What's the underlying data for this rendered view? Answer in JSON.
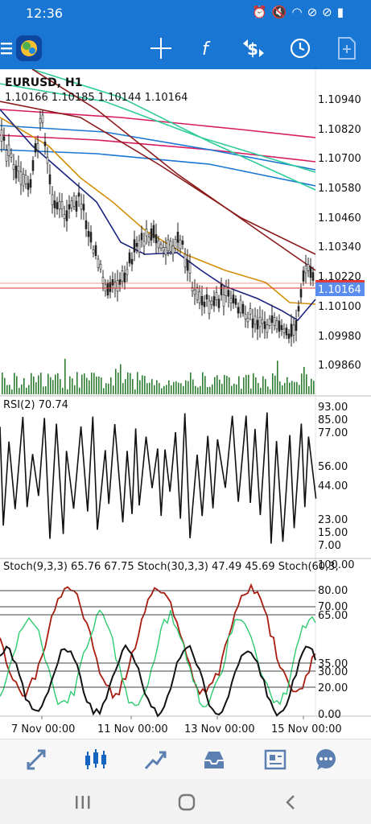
{
  "status_bar": {
    "time": "12:36",
    "icons": [
      "alarm-icon",
      "mute-icon",
      "wifi-icon",
      "blocked-icon",
      "blocked-icon",
      "battery-icon"
    ]
  },
  "toolbar": {
    "buttons": [
      "menu-icon",
      "app-logo",
      "crosshair-icon",
      "indicators-icon",
      "symbol-change-icon",
      "timeframe-icon",
      "add-object-icon"
    ]
  },
  "chart": {
    "symbol": "EURUSD, H1",
    "ohlc": "1.10166 1.10185 1.10144 1.10164",
    "price_labels": [
      "1.10940",
      "1.10820",
      "1.10700",
      "1.10580",
      "1.10460",
      "1.10340",
      "1.10220",
      "1.10100",
      "1.09980",
      "1.09860"
    ],
    "current_price": "1.10164",
    "rsi": {
      "label": "RSI(2) 70.74",
      "levels": [
        "93.00",
        "85.00",
        "77.00",
        "56.00",
        "44.00",
        "23.00",
        "15.00",
        "7.00"
      ]
    },
    "stoch": {
      "label": "Stoch(9,3,3) 65.76 67.75 Stoch(30,3,3) 47.49 45.69 Stoch(60,3,",
      "levels": [
        "100.00",
        "80.00",
        "70.00",
        "65.00",
        "35.00",
        "30.00",
        "20.00",
        "0.00"
      ]
    },
    "time_labels": [
      "7 Nov 00:00",
      "11 Nov 00:00",
      "13 Nov 00:00",
      "15 Nov 00:00"
    ],
    "colors": {
      "ma_navy": "#1a237e",
      "ma_orange": "#d4900a",
      "ma_brown": "#8b1a1a",
      "ma_green": "#2ecc9a",
      "ma_blue": "#1976d2",
      "ma_pink": "#d81b60",
      "price_line": "#e53935",
      "volume": "#2e7d32"
    }
  },
  "bottom_nav": [
    "quotes-icon",
    "chart-icon",
    "trade-icon",
    "history-icon",
    "news-icon",
    "chat-icon"
  ]
}
